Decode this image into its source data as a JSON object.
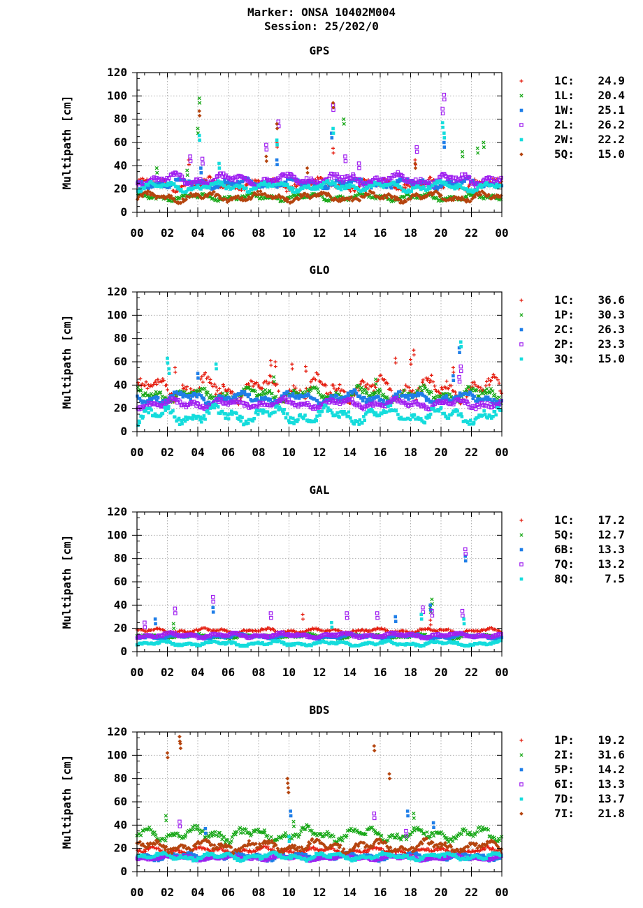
{
  "header": {
    "marker_line": "Marker: ONSA 10402M004",
    "session_line": "Session: 25/202/0"
  },
  "chart_data": [
    {
      "type": "scatter",
      "title": "GPS",
      "ylabel": "Multipath [cm]",
      "xlabel": "",
      "ylim": [
        0,
        120
      ],
      "xlim": [
        0,
        24
      ],
      "grid": true,
      "legend_position": "right",
      "y_ticks": [
        "0",
        "20",
        "40",
        "60",
        "80",
        "100",
        "120"
      ],
      "x_ticks": [
        "00",
        "02",
        "04",
        "06",
        "08",
        "10",
        "12",
        "14",
        "16",
        "18",
        "20",
        "22",
        "00"
      ],
      "series": [
        {
          "name": "1C:",
          "value": "24.9",
          "color": "#e51e10",
          "marker": "plus",
          "base": 24,
          "amp": 5,
          "spikes": [
            [
              3.4,
              45
            ],
            [
              9.2,
              60
            ],
            [
              12.9,
              55
            ],
            [
              18.3,
              45
            ]
          ]
        },
        {
          "name": "1L:",
          "value": "20.4",
          "color": "#18a818",
          "marker": "cross",
          "base": 13,
          "amp": 3,
          "spikes": [
            [
              4.1,
              98
            ],
            [
              4.0,
              72
            ],
            [
              13.6,
              80
            ],
            [
              21.4,
              52
            ],
            [
              22.4,
              55
            ],
            [
              22.8,
              60
            ],
            [
              1.3,
              38
            ],
            [
              3.3,
              36
            ]
          ]
        },
        {
          "name": "1W:",
          "value": "25.1",
          "color": "#1f7ee8",
          "marker": "square",
          "base": 25,
          "amp": 4,
          "spikes": [
            [
              9.2,
              45
            ],
            [
              12.8,
              68
            ],
            [
              20.2,
              60
            ],
            [
              4.2,
              38
            ]
          ]
        },
        {
          "name": "2L:",
          "value": "26.2",
          "color": "#a020f0",
          "marker": "opensquare",
          "base": 28,
          "amp": 5,
          "spikes": [
            [
              3.5,
              48
            ],
            [
              4.3,
              46
            ],
            [
              8.5,
              58
            ],
            [
              9.3,
              78
            ],
            [
              12.9,
              92
            ],
            [
              13.7,
              48
            ],
            [
              18.4,
              56
            ],
            [
              20.2,
              101
            ],
            [
              20.1,
              89
            ],
            [
              14.6,
              42
            ]
          ]
        },
        {
          "name": "2W:",
          "value": "22.2",
          "color": "#14dcdc",
          "marker": "filledsquare",
          "base": 22,
          "amp": 4,
          "spikes": [
            [
              4.1,
              66
            ],
            [
              9.2,
              62
            ],
            [
              12.9,
              72
            ],
            [
              20.1,
              77
            ],
            [
              20.2,
              68
            ],
            [
              5.4,
              42
            ]
          ]
        },
        {
          "name": "5Q:",
          "value": "15.0",
          "color": "#b5450f",
          "marker": "diamond",
          "base": 13,
          "amp": 4,
          "spikes": [
            [
              4.1,
              87
            ],
            [
              8.5,
              48
            ],
            [
              9.2,
              76
            ],
            [
              12.9,
              94
            ],
            [
              11.2,
              38
            ],
            [
              18.3,
              42
            ]
          ]
        }
      ]
    },
    {
      "type": "scatter",
      "title": "GLO",
      "ylabel": "Multipath [cm]",
      "xlabel": "",
      "ylim": [
        0,
        120
      ],
      "xlim": [
        0,
        24
      ],
      "grid": true,
      "legend_position": "right",
      "y_ticks": [
        "0",
        "20",
        "40",
        "60",
        "80",
        "100",
        "120"
      ],
      "x_ticks": [
        "00",
        "02",
        "04",
        "06",
        "08",
        "10",
        "12",
        "14",
        "16",
        "18",
        "20",
        "22",
        "00"
      ],
      "series": [
        {
          "name": "1C:",
          "value": "36.6",
          "color": "#e51e10",
          "marker": "plus",
          "base": 37,
          "amp": 10,
          "spikes": [
            [
              2.5,
              55
            ],
            [
              8.8,
              61
            ],
            [
              9.1,
              60
            ],
            [
              10.2,
              58
            ],
            [
              11.1,
              56
            ],
            [
              17.0,
              63
            ],
            [
              18.2,
              70
            ],
            [
              18.0,
              62
            ],
            [
              20.8,
              55
            ]
          ]
        },
        {
          "name": "1P:",
          "value": "30.3",
          "color": "#18a818",
          "marker": "cross",
          "base": 32,
          "amp": 6,
          "spikes": [
            [
              9.0,
              47
            ],
            [
              15.7,
              45
            ]
          ]
        },
        {
          "name": "2C:",
          "value": "26.3",
          "color": "#1f7ee8",
          "marker": "square",
          "base": 29,
          "amp": 5,
          "spikes": [
            [
              21.2,
              72
            ],
            [
              20.8,
              48
            ],
            [
              4.0,
              50
            ]
          ]
        },
        {
          "name": "2P:",
          "value": "23.3",
          "color": "#a020f0",
          "marker": "opensquare",
          "base": 24,
          "amp": 4,
          "spikes": [
            [
              21.3,
              56
            ],
            [
              21.2,
              47
            ]
          ]
        },
        {
          "name": "3Q:",
          "value": "15.0",
          "color": "#14dcdc",
          "marker": "filledsquare",
          "base": 14,
          "amp": 7,
          "spikes": [
            [
              2.0,
              63
            ],
            [
              21.3,
              77
            ],
            [
              5.2,
              58
            ],
            [
              2.1,
              54
            ]
          ]
        }
      ]
    },
    {
      "type": "scatter",
      "title": "GAL",
      "ylabel": "Multipath [cm]",
      "xlabel": "",
      "ylim": [
        0,
        120
      ],
      "xlim": [
        0,
        24
      ],
      "grid": true,
      "legend_position": "right",
      "y_ticks": [
        "0",
        "20",
        "40",
        "60",
        "80",
        "100",
        "120"
      ],
      "x_ticks": [
        "00",
        "02",
        "04",
        "06",
        "08",
        "10",
        "12",
        "14",
        "16",
        "18",
        "20",
        "22",
        "00"
      ],
      "series": [
        {
          "name": "1C:",
          "value": "17.2",
          "color": "#e51e10",
          "marker": "plus",
          "base": 18,
          "amp": 2,
          "spikes": [
            [
              10.9,
              32
            ],
            [
              19.3,
              27
            ]
          ]
        },
        {
          "name": "5Q:",
          "value": "12.7",
          "color": "#18a818",
          "marker": "cross",
          "base": 13,
          "amp": 2,
          "spikes": [
            [
              2.4,
              24
            ],
            [
              19.4,
              45
            ],
            [
              19.3,
              38
            ]
          ]
        },
        {
          "name": "6B:",
          "value": "13.3",
          "color": "#1f7ee8",
          "marker": "square",
          "base": 13,
          "amp": 2,
          "spikes": [
            [
              1.2,
              28
            ],
            [
              5.0,
              38
            ],
            [
              21.6,
              82
            ],
            [
              19.3,
              40
            ],
            [
              17.0,
              30
            ]
          ]
        },
        {
          "name": "7Q:",
          "value": "13.2",
          "color": "#a020f0",
          "marker": "opensquare",
          "base": 14,
          "amp": 2,
          "spikes": [
            [
              0.5,
              25
            ],
            [
              2.5,
              37
            ],
            [
              5.0,
              47
            ],
            [
              8.8,
              33
            ],
            [
              13.8,
              33
            ],
            [
              15.8,
              33
            ],
            [
              18.8,
              38
            ],
            [
              21.6,
              88
            ],
            [
              21.4,
              35
            ],
            [
              19.4,
              35
            ]
          ]
        },
        {
          "name": "8Q:",
          "value": "7.5",
          "color": "#14dcdc",
          "marker": "filledsquare",
          "base": 7,
          "amp": 2,
          "spikes": [
            [
              12.8,
              25
            ],
            [
              21.5,
              28
            ],
            [
              18.7,
              32
            ]
          ]
        }
      ]
    },
    {
      "type": "scatter",
      "title": "BDS",
      "ylabel": "Multipath [cm]",
      "xlabel": "",
      "ylim": [
        0,
        120
      ],
      "xlim": [
        0,
        24
      ],
      "grid": true,
      "legend_position": "right",
      "y_ticks": [
        "0",
        "20",
        "40",
        "60",
        "80",
        "100",
        "120"
      ],
      "x_ticks": [
        "00",
        "02",
        "04",
        "06",
        "08",
        "10",
        "12",
        "14",
        "16",
        "18",
        "20",
        "22",
        "00"
      ],
      "series": [
        {
          "name": "1P:",
          "value": "19.2",
          "color": "#e51e10",
          "marker": "plus",
          "base": 18,
          "amp": 3,
          "spikes": []
        },
        {
          "name": "2I:",
          "value": "31.6",
          "color": "#18a818",
          "marker": "cross",
          "base": 32,
          "amp": 6,
          "spikes": [
            [
              1.9,
              48
            ],
            [
              18.2,
              50
            ],
            [
              10.3,
              43
            ]
          ]
        },
        {
          "name": "5P:",
          "value": "14.2",
          "color": "#1f7ee8",
          "marker": "square",
          "base": 13,
          "amp": 3,
          "spikes": [
            [
              10.1,
              52
            ],
            [
              17.8,
              52
            ],
            [
              19.5,
              42
            ],
            [
              4.5,
              37
            ]
          ]
        },
        {
          "name": "6I:",
          "value": "13.3",
          "color": "#a020f0",
          "marker": "opensquare",
          "base": 12,
          "amp": 2,
          "spikes": [
            [
              15.6,
              50
            ],
            [
              2.8,
              43
            ],
            [
              17.7,
              35
            ]
          ]
        },
        {
          "name": "7D:",
          "value": "13.7",
          "color": "#14dcdc",
          "marker": "filledsquare",
          "base": 13,
          "amp": 3,
          "spikes": [
            [
              10.0,
              30
            ]
          ]
        },
        {
          "name": "7I:",
          "value": "21.8",
          "color": "#b5450f",
          "marker": "diamond",
          "base": 22,
          "amp": 5,
          "spikes": [
            [
              2.0,
              102
            ],
            [
              2.8,
              116
            ],
            [
              2.85,
              110
            ],
            [
              9.9,
              80
            ],
            [
              9.95,
              72
            ],
            [
              15.6,
              108
            ],
            [
              16.6,
              84
            ]
          ]
        }
      ]
    }
  ]
}
